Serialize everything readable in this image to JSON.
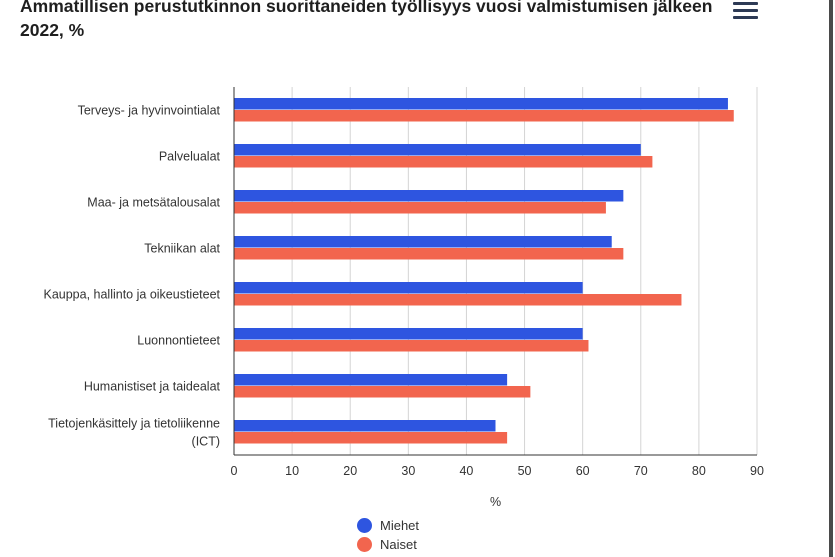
{
  "header": {
    "title": "Ammatillisen perustutkinnon suorittaneiden työllisyys vuosi valmistumisen jälkeen 2022, %",
    "menu_icon": "hamburger-menu-icon"
  },
  "colors": {
    "Miehet": "#2e55e0",
    "Naiset": "#f2654e",
    "grid": "#d4d4d4",
    "axis": "#333333",
    "text": "#333333"
  },
  "chart_data": {
    "type": "bar",
    "orientation": "horizontal",
    "title": "Ammatillisen perustutkinnon suorittaneiden työllisyys vuosi valmistumisen jälkeen 2022, %",
    "xlabel": "%",
    "ylabel": "",
    "xlim": [
      0,
      90
    ],
    "xticks": [
      0,
      10,
      20,
      30,
      40,
      50,
      60,
      70,
      80,
      90
    ],
    "grid": true,
    "legend": "bottom-center",
    "categories": [
      [
        "Terveys- ja hyvinvointialat"
      ],
      [
        "Palvelualat"
      ],
      [
        "Maa- ja metsätalousalat"
      ],
      [
        "Tekniikan alat"
      ],
      [
        "Kauppa, hallinto ja oikeustieteet"
      ],
      [
        "Luonnontieteet"
      ],
      [
        "Humanistiset ja taidealat"
      ],
      [
        "Tietojenkäsittely ja tietoliikenne",
        "(ICT)"
      ]
    ],
    "series": [
      {
        "name": "Miehet",
        "values": [
          85,
          70,
          67,
          65,
          60,
          60,
          47,
          45
        ]
      },
      {
        "name": "Naiset",
        "values": [
          86,
          72,
          64,
          67,
          77,
          61,
          51,
          47
        ]
      }
    ]
  }
}
